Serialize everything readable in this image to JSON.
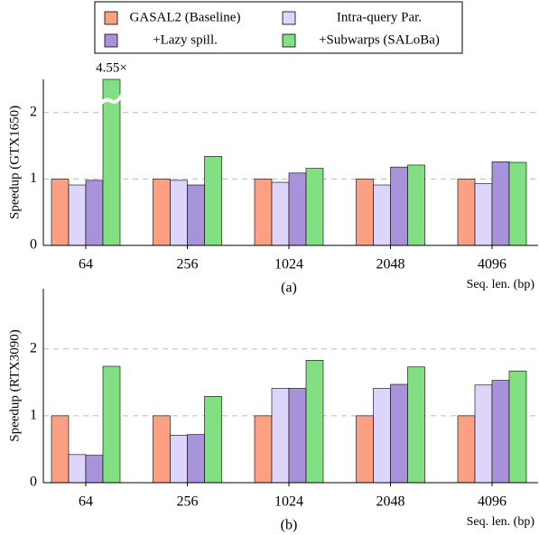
{
  "chart_data": [
    {
      "type": "bar",
      "ylabel": "Speedup (GTX1650)",
      "xlabel": "Seq. len. (bp)",
      "caption": "(a)",
      "categories": [
        "64",
        "256",
        "1024",
        "2048",
        "4096"
      ],
      "ylim": [
        0,
        2.5
      ],
      "yticks": [
        0,
        1,
        2
      ],
      "grid": true,
      "series": [
        {
          "name": "GASAL2 (Baseline)",
          "color": "#fba082",
          "values": [
            1.0,
            1.0,
            1.0,
            1.0,
            1.0
          ]
        },
        {
          "name": "Intra-query Par.",
          "color": "#ddd5fb",
          "values": [
            0.91,
            0.98,
            0.95,
            0.91,
            0.93
          ]
        },
        {
          "name": "+Lazy spill.",
          "color": "#a892d9",
          "values": [
            0.98,
            0.91,
            1.09,
            1.18,
            1.26
          ]
        },
        {
          "name": "+Subwarps (SALoBa)",
          "color": "#82e082",
          "values": [
            4.55,
            1.34,
            1.16,
            1.21,
            1.25
          ],
          "value_labels": [
            "4.55×",
            null,
            null,
            null,
            null
          ]
        }
      ]
    },
    {
      "type": "bar",
      "ylabel": "Speedup (RTX3090)",
      "xlabel": "Seq. len. (bp)",
      "caption": "(b)",
      "categories": [
        "64",
        "256",
        "1024",
        "2048",
        "4096"
      ],
      "ylim": [
        0,
        2.9
      ],
      "yticks": [
        0,
        1,
        2
      ],
      "grid": true,
      "series": [
        {
          "name": "GASAL2 (Baseline)",
          "color": "#fba082",
          "values": [
            1.0,
            1.0,
            1.0,
            1.0,
            1.0
          ]
        },
        {
          "name": "Intra-query Par.",
          "color": "#ddd5fb",
          "values": [
            0.42,
            0.71,
            1.41,
            1.41,
            1.46
          ]
        },
        {
          "name": "+Lazy spill.",
          "color": "#a892d9",
          "values": [
            0.41,
            0.72,
            1.41,
            1.47,
            1.53
          ]
        },
        {
          "name": "+Subwarps (SALoBa)",
          "color": "#82e082",
          "values": [
            1.74,
            1.29,
            1.83,
            1.73,
            1.67
          ]
        }
      ]
    }
  ]
}
